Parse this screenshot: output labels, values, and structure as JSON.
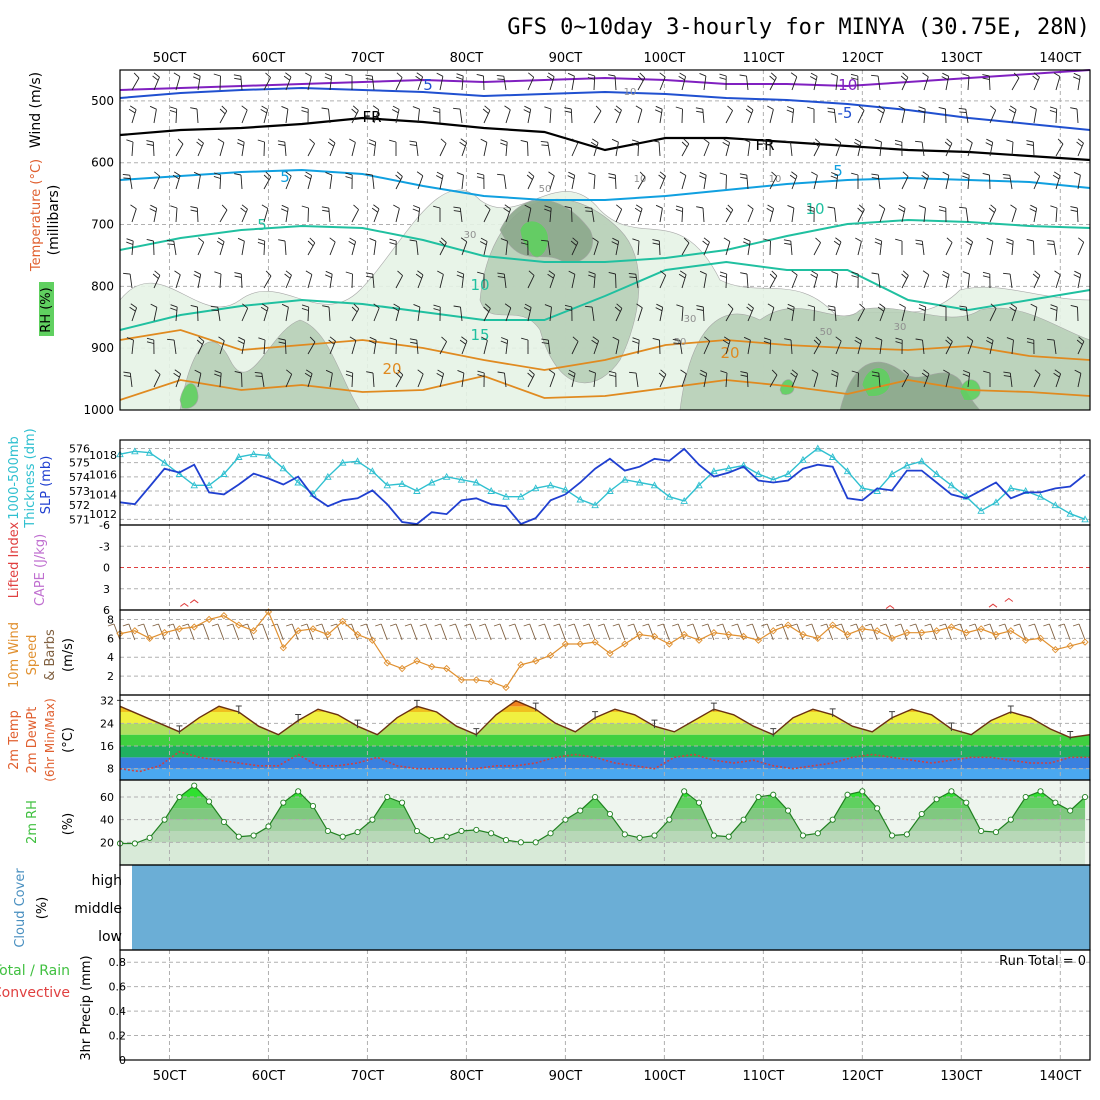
{
  "title": "GFS 0~10day 3-hourly for MINYA (30.75E, 28N)",
  "time_ticks": [
    "50CT",
    "60CT",
    "70CT",
    "80CT",
    "90CT",
    "100CT",
    "110CT",
    "120CT",
    "130CT",
    "140CT"
  ],
  "colors": {
    "temp_cold": "#2050d0",
    "temp_mid": "#10a0e0",
    "temp_teal": "#20c0a0",
    "temp_warm": "#e08a20",
    "temp_hot": "#e03020",
    "temp_purple": "#8020c0",
    "rh_light": "#e6f3e6",
    "rh_mid": "#b8d0b8",
    "rh_dark": "#8ca88c",
    "rh_bright": "#60d060",
    "thickness": "#30c0d0",
    "slp": "#2040d0",
    "cape": "#e04040",
    "wind10": "#e09030",
    "barb": "#806040",
    "dewpt": "#d04040",
    "rh2m": "#40c040",
    "cloud": "#6baed6"
  },
  "panels": {
    "upper_air": {
      "labels": {
        "wind": "Wind (m/s)",
        "temperature": "Temperature (°C)",
        "rh": "RH (%)",
        "pressure": "(millibars)"
      },
      "pressure_ticks": [
        "500",
        "600",
        "700",
        "800",
        "900",
        "1000"
      ],
      "contour_labels": [
        "5",
        "5",
        "-10",
        "-5",
        "FR",
        "FR",
        "5",
        "5",
        "10",
        "10",
        "10",
        "10",
        "15",
        "20",
        "20",
        "10",
        "30",
        "50",
        "50",
        "30",
        "50",
        "30"
      ],
      "freezing_level_label": "FR"
    },
    "thickness_slp": {
      "labels": {
        "thickness": "1000-500mb",
        "thickness2": "Thickness (dm)",
        "slp": "SLP (mb)"
      },
      "thickness_ticks": [
        "576",
        "575",
        "574",
        "573",
        "572",
        "571"
      ],
      "slp_ticks": [
        "1018",
        "1016",
        "1014",
        "1012"
      ]
    },
    "stability": {
      "labels": {
        "lifted": "Lifted Index",
        "cape": "CAPE (J/kg)"
      },
      "ticks": [
        "-6",
        "-3",
        "0",
        "3",
        "6"
      ]
    },
    "wind10m": {
      "labels": {
        "a": "10m Wind",
        "b": "Speed",
        "c": "& Barbs",
        "unit": "(m/s)"
      },
      "ticks": [
        "8",
        "6",
        "4",
        "2"
      ]
    },
    "temp2m": {
      "labels": {
        "a": "2m Temp",
        "b": "2m DewPt",
        "c": "(6hr Min/Max)",
        "unit": "(°C)"
      },
      "ticks": [
        "32",
        "24",
        "16",
        "8"
      ]
    },
    "rh2m": {
      "labels": {
        "a": "2m RH",
        "unit": "(%)"
      },
      "ticks": [
        "60",
        "40",
        "20"
      ]
    },
    "cloud": {
      "labels": {
        "a": "Cloud Cover",
        "unit": "(%)"
      },
      "levels": [
        "high",
        "middle",
        "low"
      ]
    },
    "precip": {
      "labels": {
        "a": "Total / Rain",
        "b": "Convective",
        "c": "3hr Precip (mm)"
      },
      "ticks": [
        "0.8",
        "0.6",
        "0.4",
        "0.2",
        "0"
      ],
      "run_total": "Run Total = 0"
    }
  },
  "chart_data": {
    "type": "line",
    "x_range": [
      45,
      143
    ],
    "x_ticks": [
      50,
      60,
      70,
      80,
      90,
      100,
      110,
      120,
      130,
      140
    ],
    "thickness_dm": {
      "ylim": [
        570.6,
        576.6
      ],
      "x": [
        45,
        46.5,
        48,
        49.5,
        51,
        52.5,
        54,
        55.5,
        57,
        58.5,
        60,
        61.5,
        63,
        64.5,
        66,
        67.5,
        69,
        70.5,
        72,
        73.5,
        75,
        76.5,
        78,
        79.5,
        81,
        82.5,
        84,
        85.5,
        87,
        88.5,
        90,
        91.5,
        93,
        94.5,
        96,
        97.5,
        99,
        100.5,
        102,
        103.5,
        105,
        106.5,
        108,
        109.5,
        111,
        112.5,
        114,
        115.5,
        117,
        118.5,
        120,
        121.5,
        123,
        124.5,
        126,
        127.5,
        129,
        130.5,
        132,
        133.5,
        135,
        136.5,
        138,
        139.5,
        141,
        142.5
      ],
      "values": [
        575.6,
        575.8,
        575.7,
        575.0,
        574.2,
        573.4,
        573.4,
        574.2,
        575.4,
        575.6,
        575.5,
        574.6,
        573.6,
        572.8,
        574.0,
        575.0,
        575.1,
        574.4,
        573.4,
        573.5,
        573.0,
        573.6,
        574.0,
        573.8,
        573.6,
        573.0,
        572.6,
        572.6,
        573.2,
        573.4,
        573.1,
        572.4,
        572.0,
        573.0,
        573.8,
        573.6,
        573.4,
        572.6,
        572.3,
        573.4,
        574.4,
        574.6,
        574.8,
        574.2,
        573.8,
        574.2,
        575.2,
        576.0,
        575.4,
        574.4,
        573.2,
        573.0,
        574.2,
        574.8,
        575.1,
        574.2,
        573.4,
        572.6,
        571.6,
        572.2,
        573.2,
        573.0,
        572.6,
        572.0,
        571.4,
        571.0
      ]
    },
    "slp_mb": {
      "ylim": [
        1010.9,
        1019.5
      ],
      "x": [
        45,
        46.5,
        48,
        49.5,
        51,
        52.5,
        54,
        55.5,
        57,
        58.5,
        60,
        61.5,
        63,
        64.5,
        66,
        67.5,
        69,
        70.5,
        72,
        73.5,
        75,
        76.5,
        78,
        79.5,
        81,
        82.5,
        84,
        85.5,
        87,
        88.5,
        90,
        91.5,
        93,
        94.5,
        96,
        97.5,
        99,
        100.5,
        102,
        103.5,
        105,
        106.5,
        108,
        109.5,
        111,
        112.5,
        114,
        115.5,
        117,
        118.5,
        120,
        121.5,
        123,
        124.5,
        126,
        127.5,
        129,
        130.5,
        132,
        133.5,
        135,
        136.5,
        138,
        139.5,
        141,
        142.5
      ],
      "values": [
        1013.2,
        1013.0,
        1014.8,
        1016.6,
        1016.2,
        1017.0,
        1014.2,
        1014.0,
        1015.0,
        1016.1,
        1015.6,
        1015.0,
        1015.8,
        1013.8,
        1012.8,
        1013.4,
        1013.6,
        1014.4,
        1013.0,
        1011.2,
        1011.0,
        1012.2,
        1012.0,
        1013.4,
        1013.6,
        1013.0,
        1012.8,
        1011.0,
        1011.6,
        1013.4,
        1014.0,
        1015.2,
        1016.6,
        1017.6,
        1016.4,
        1016.8,
        1017.6,
        1017.4,
        1018.6,
        1017.0,
        1015.8,
        1016.2,
        1016.8,
        1015.4,
        1015.2,
        1015.4,
        1016.6,
        1017.0,
        1016.8,
        1013.6,
        1013.4,
        1014.6,
        1014.4,
        1016.4,
        1016.4,
        1015.2,
        1014.0,
        1013.6,
        1014.4,
        1015.2,
        1013.6,
        1014.2,
        1014.2,
        1014.6,
        1014.8,
        1016.0
      ]
    },
    "wind10m_speed": {
      "ylim": [
        0,
        9
      ],
      "x": [
        45,
        46.5,
        48,
        49.5,
        51,
        52.5,
        54,
        55.5,
        57,
        58.5,
        60,
        61.5,
        63,
        64.5,
        66,
        67.5,
        69,
        70.5,
        72,
        73.5,
        75,
        76.5,
        78,
        79.5,
        81,
        82.5,
        84,
        85.5,
        87,
        88.5,
        90,
        91.5,
        93,
        94.5,
        96,
        97.5,
        99,
        100.5,
        102,
        103.5,
        105,
        106.5,
        108,
        109.5,
        111,
        112.5,
        114,
        115.5,
        117,
        118.5,
        120,
        121.5,
        123,
        124.5,
        126,
        127.5,
        129,
        130.5,
        132,
        133.5,
        135,
        136.5,
        138,
        139.5,
        141,
        142.5
      ],
      "values": [
        6.5,
        6.8,
        6.0,
        6.6,
        7.0,
        7.2,
        8.0,
        8.4,
        7.4,
        6.8,
        8.8,
        5.0,
        6.8,
        7.0,
        6.4,
        7.8,
        6.4,
        5.8,
        3.4,
        2.8,
        3.6,
        3.0,
        2.8,
        1.6,
        1.6,
        1.4,
        0.8,
        3.2,
        3.6,
        4.2,
        5.4,
        5.4,
        5.6,
        4.4,
        5.4,
        6.4,
        6.2,
        5.4,
        6.4,
        5.8,
        6.6,
        6.4,
        6.2,
        5.8,
        6.8,
        7.4,
        6.4,
        6.0,
        7.4,
        6.4,
        7.0,
        6.8,
        6.0,
        6.6,
        6.6,
        6.8,
        7.2,
        6.6,
        7.0,
        6.4,
        6.8,
        5.8,
        6.0,
        4.8,
        5.2,
        5.6
      ]
    },
    "temp2m_c": {
      "ylim": [
        4,
        34
      ],
      "x": [
        45,
        47,
        49,
        51,
        53,
        55,
        57,
        59,
        61,
        63,
        65,
        67,
        69,
        71,
        73,
        75,
        77,
        79,
        81,
        83,
        85,
        87,
        89,
        91,
        93,
        95,
        97,
        99,
        101,
        103,
        105,
        107,
        109,
        111,
        113,
        115,
        117,
        119,
        121,
        123,
        125,
        127,
        129,
        131,
        133,
        135,
        137,
        139,
        141,
        143
      ],
      "values": [
        30,
        27,
        24,
        21,
        26,
        30,
        28,
        23,
        20,
        25,
        29,
        27,
        23,
        20,
        26,
        30,
        28,
        23,
        20,
        27,
        32,
        29,
        24,
        21,
        26,
        29,
        27,
        23,
        21,
        25,
        29,
        27,
        23,
        20,
        26,
        29,
        27,
        23,
        21,
        26,
        29,
        27,
        22,
        20,
        25,
        28,
        26,
        22,
        19,
        20
      ]
    },
    "dewpt2m_c": {
      "ylim": [
        4,
        34
      ],
      "x": [
        45,
        47,
        49,
        51,
        53,
        55,
        57,
        59,
        61,
        63,
        65,
        67,
        69,
        71,
        73,
        75,
        77,
        79,
        81,
        83,
        85,
        87,
        89,
        91,
        93,
        95,
        97,
        99,
        101,
        103,
        105,
        107,
        109,
        111,
        113,
        115,
        117,
        119,
        121,
        123,
        125,
        127,
        129,
        131,
        133,
        135,
        137,
        139,
        141,
        143
      ],
      "values": [
        8,
        7,
        9,
        14,
        12,
        11,
        10,
        9,
        9,
        13,
        9,
        9,
        10,
        12,
        9,
        8,
        8,
        8,
        8,
        9,
        9,
        10,
        12,
        13,
        12,
        10,
        9,
        8,
        12,
        13,
        11,
        10,
        11,
        9,
        8,
        9,
        10,
        12,
        13,
        12,
        11,
        10,
        11,
        12,
        12,
        11,
        10,
        10,
        12,
        12
      ]
    },
    "rh2m_pct": {
      "ylim": [
        0,
        75
      ],
      "x": [
        45,
        46.5,
        48,
        49.5,
        51,
        52.5,
        54,
        55.5,
        57,
        58.5,
        60,
        61.5,
        63,
        64.5,
        66,
        67.5,
        69,
        70.5,
        72,
        73.5,
        75,
        76.5,
        78,
        79.5,
        81,
        82.5,
        84,
        85.5,
        87,
        88.5,
        90,
        91.5,
        93,
        94.5,
        96,
        97.5,
        99,
        100.5,
        102,
        103.5,
        105,
        106.5,
        108,
        109.5,
        111,
        112.5,
        114,
        115.5,
        117,
        118.5,
        120,
        121.5,
        123,
        124.5,
        126,
        127.5,
        129,
        130.5,
        132,
        133.5,
        135,
        136.5,
        138,
        139.5,
        141,
        142.5
      ],
      "values": [
        19,
        19,
        24,
        40,
        60,
        70,
        56,
        38,
        25,
        26,
        34,
        55,
        65,
        52,
        30,
        25,
        29,
        40,
        60,
        55,
        30,
        22,
        25,
        30,
        31,
        28,
        22,
        20,
        20,
        28,
        40,
        48,
        60,
        45,
        27,
        24,
        26,
        40,
        65,
        55,
        26,
        25,
        40,
        60,
        62,
        48,
        26,
        28,
        40,
        62,
        65,
        50,
        26,
        27,
        45,
        58,
        65,
        55,
        30,
        29,
        40,
        60,
        65,
        55,
        48,
        60
      ]
    },
    "cape_li": {
      "ylim": [
        -6,
        6
      ],
      "li_x": [
        51.5,
        52.5,
        122.8,
        133.2,
        134.8
      ],
      "li_values": [
        5.5,
        5.0,
        5.8,
        5.6,
        4.8
      ]
    },
    "precip_mm": {
      "ylim": [
        0,
        0.9
      ],
      "values": []
    }
  }
}
